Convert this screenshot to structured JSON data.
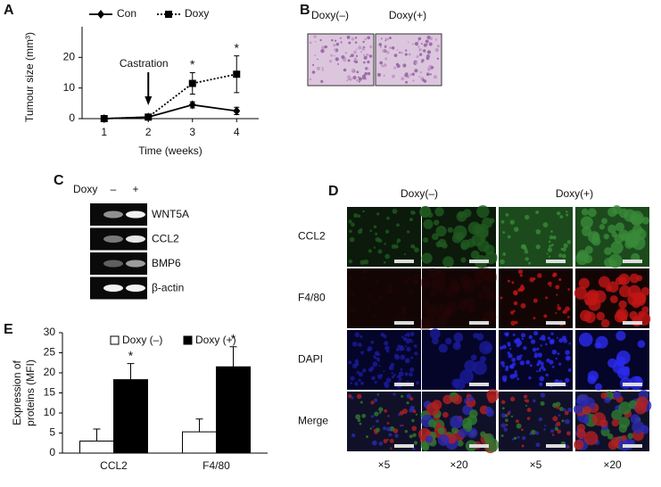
{
  "chart_data": [
    {
      "type": "line",
      "x": [
        1,
        2,
        3,
        4
      ],
      "xlim": [
        0.5,
        4.5
      ],
      "xticks": [
        1,
        2,
        3,
        4
      ],
      "ylim": [
        0,
        30
      ],
      "yticks": [
        0,
        10,
        20
      ],
      "x_label": "Time (weeks)",
      "y_label": "Tumour size (mm³)",
      "annotation": {
        "text": "Castration",
        "x": 2
      },
      "series": [
        {
          "name": "Con",
          "color": "#000000",
          "dash": "solid",
          "marker": "diamond",
          "values": [
            0,
            0.5,
            4.5,
            2.5
          ],
          "errors": [
            0.3,
            0.3,
            1,
            1.2
          ]
        },
        {
          "name": "Doxy",
          "color": "#000000",
          "dash": "dotted",
          "marker": "square",
          "values": [
            0,
            0.5,
            11.5,
            14.5
          ],
          "errors": [
            0.3,
            0.3,
            3.5,
            6
          ],
          "markers": [
            null,
            null,
            "*",
            "*"
          ]
        }
      ]
    },
    {
      "type": "bar",
      "categories": [
        "CCL2",
        "F4/80"
      ],
      "ylim": [
        0,
        30
      ],
      "yticks": [
        0,
        5,
        10,
        15,
        20,
        25,
        30
      ],
      "y_label": [
        "Expression of",
        "proteins (MFI)"
      ],
      "series": [
        {
          "name": "Doxy (–)",
          "color": "#ffffff",
          "values": [
            3,
            5.3
          ],
          "errors": [
            3,
            3.2
          ]
        },
        {
          "name": "Doxy (+)",
          "color": "#000000",
          "values": [
            18.3,
            21.5
          ],
          "errors": [
            4,
            5
          ],
          "markers": [
            "*",
            "*"
          ]
        }
      ]
    }
  ],
  "panel_letters": [
    "A",
    "B",
    "C",
    "D",
    "E"
  ],
  "panel_b": {
    "labels": [
      "Doxy(–)",
      "Doxy(+)"
    ]
  },
  "panel_c": {
    "header": "Doxy",
    "lanes": [
      "–",
      "+"
    ],
    "genes": [
      "WNT5A",
      "CCL2",
      "BMP6",
      "β-actin"
    ]
  },
  "panel_d": {
    "columns": [
      "Doxy(–)",
      "Doxy(+)"
    ],
    "rows": [
      "CCL2",
      "F4/80",
      "DAPI",
      "Merge"
    ],
    "magnifications": [
      "×5",
      "×20",
      "×5",
      "×20"
    ]
  }
}
